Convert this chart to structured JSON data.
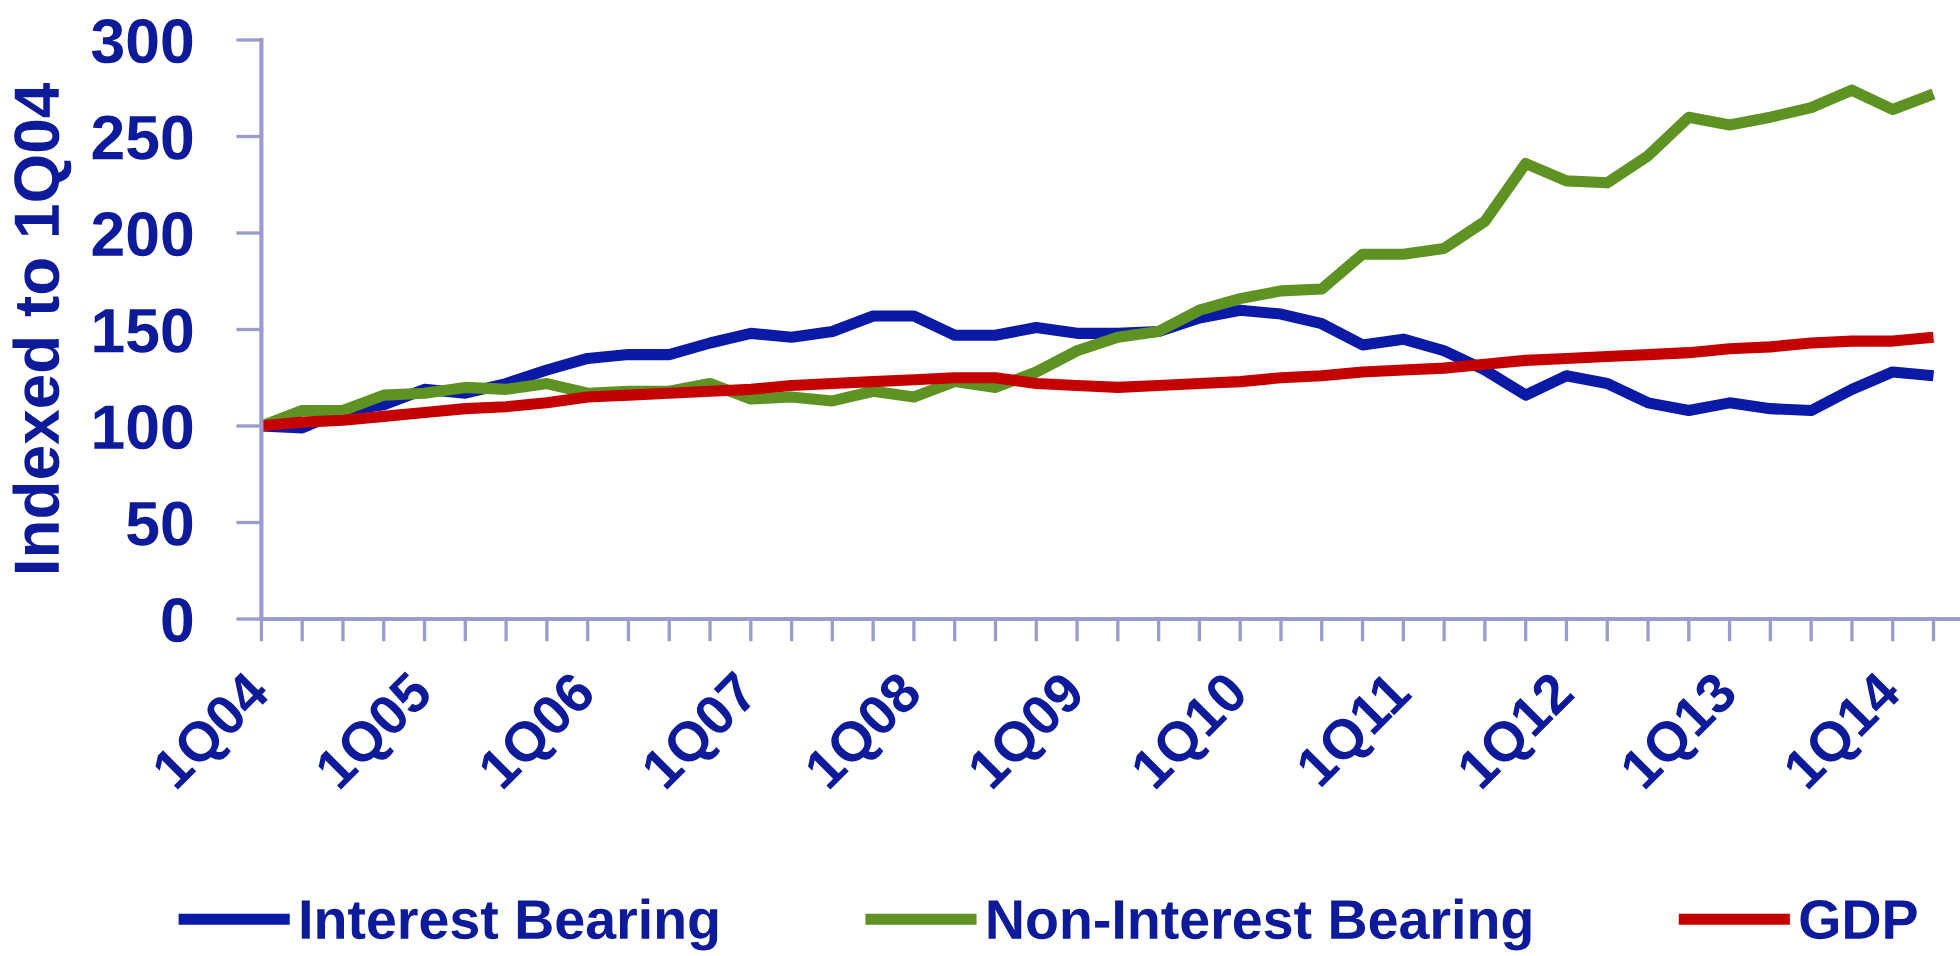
{
  "chart_data": {
    "type": "line",
    "ylabel": "Indexed to 1Q04",
    "categories": [
      "1Q04",
      null,
      null,
      null,
      "1Q05",
      null,
      null,
      null,
      "1Q06",
      null,
      null,
      null,
      "1Q07",
      null,
      null,
      null,
      "1Q08",
      null,
      null,
      null,
      "1Q09",
      null,
      null,
      null,
      "1Q10",
      null,
      null,
      null,
      "1Q11",
      null,
      null,
      null,
      "1Q12",
      null,
      null,
      null,
      "1Q13",
      null,
      null,
      null,
      "1Q14",
      null
    ],
    "series": [
      {
        "name": "Interest Bearing",
        "color": "#0a1aa6",
        "values": [
          100,
          99,
          108,
          111,
          119,
          117,
          122,
          129,
          135,
          137,
          137,
          143,
          148,
          146,
          149,
          157,
          157,
          147,
          147,
          151,
          148,
          148,
          149,
          156,
          160,
          158,
          153,
          142,
          145,
          139,
          129,
          116,
          126,
          122,
          112,
          108,
          112,
          109,
          108,
          119,
          128,
          126
        ]
      },
      {
        "name": "Non-Interest Bearing",
        "color": "#5e9324",
        "values": [
          100,
          108,
          108,
          116,
          117,
          120,
          119,
          122,
          117,
          118,
          118,
          122,
          114,
          115,
          113,
          118,
          115,
          123,
          120,
          128,
          139,
          146,
          149,
          160,
          166,
          170,
          171,
          189,
          189,
          192,
          206,
          236,
          227,
          226,
          240,
          260,
          256,
          260,
          265,
          274,
          264,
          272
        ]
      },
      {
        "name": "GDP",
        "color": "#c40000",
        "values": [
          100,
          102,
          103,
          105,
          107,
          109,
          110,
          112,
          115,
          116,
          117,
          118,
          119,
          121,
          122,
          123,
          124,
          125,
          125,
          122,
          121,
          120,
          121,
          122,
          123,
          125,
          126,
          128,
          129,
          130,
          132,
          134,
          135,
          136,
          137,
          138,
          140,
          141,
          143,
          144,
          144,
          146
        ]
      }
    ],
    "ylim": [
      0,
      300
    ],
    "yticks": [
      0,
      50,
      100,
      150,
      200,
      250,
      300
    ],
    "legend": "bottom",
    "line_style": "solid"
  }
}
